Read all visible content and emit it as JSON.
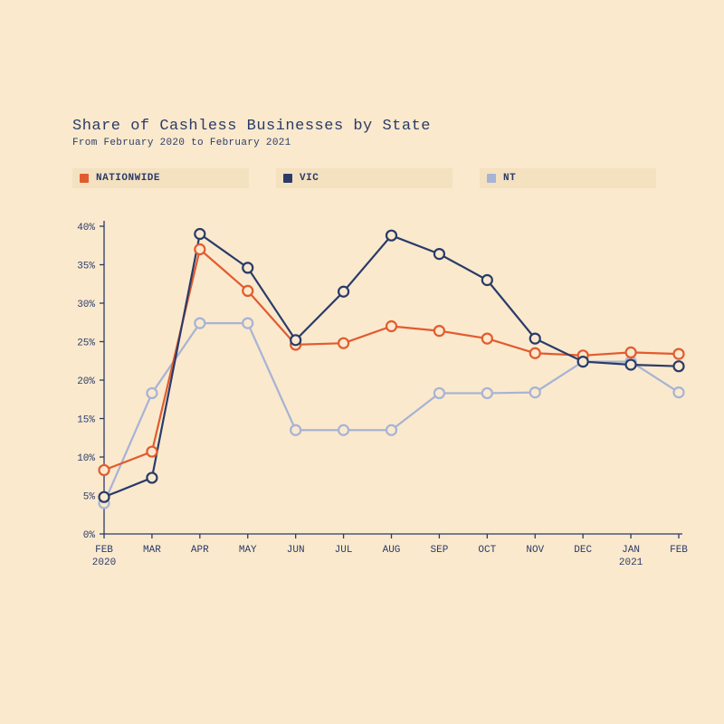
{
  "title": "Share of Cashless Businesses by State",
  "subtitle": "From February 2020 to February 2021",
  "background_color": "#fae9cd",
  "legend_bg": "#f4e1c0",
  "text_color": "#2a3b69",
  "chart": {
    "type": "line",
    "ylim": [
      0,
      40
    ],
    "ytick_step": 5,
    "ytick_suffix": "%",
    "x_labels": [
      "FEB",
      "MAR",
      "APR",
      "MAY",
      "JUN",
      "JUL",
      "AUG",
      "SEP",
      "OCT",
      "NOV",
      "DEC",
      "JAN",
      "FEB"
    ],
    "x_sublabels": {
      "0": "2020",
      "11": "2021"
    },
    "marker_radius": 5.5,
    "series": [
      {
        "name": "NATIONWIDE",
        "color": "#e25b2f",
        "values": [
          8.3,
          10.7,
          37.0,
          31.6,
          24.6,
          24.8,
          27.0,
          26.4,
          25.4,
          23.5,
          23.2,
          23.6,
          23.4
        ]
      },
      {
        "name": "VIC",
        "color": "#2a3b69",
        "values": [
          4.8,
          7.3,
          39.0,
          34.6,
          25.2,
          31.5,
          38.8,
          36.4,
          33.0,
          25.4,
          22.4,
          22.0,
          21.8
        ]
      },
      {
        "name": "NT",
        "color": "#a7b3d4",
        "values": [
          4.0,
          18.3,
          27.4,
          27.4,
          13.5,
          13.5,
          13.5,
          18.3,
          18.3,
          18.4,
          22.4,
          22.4,
          18.4
        ]
      }
    ]
  }
}
